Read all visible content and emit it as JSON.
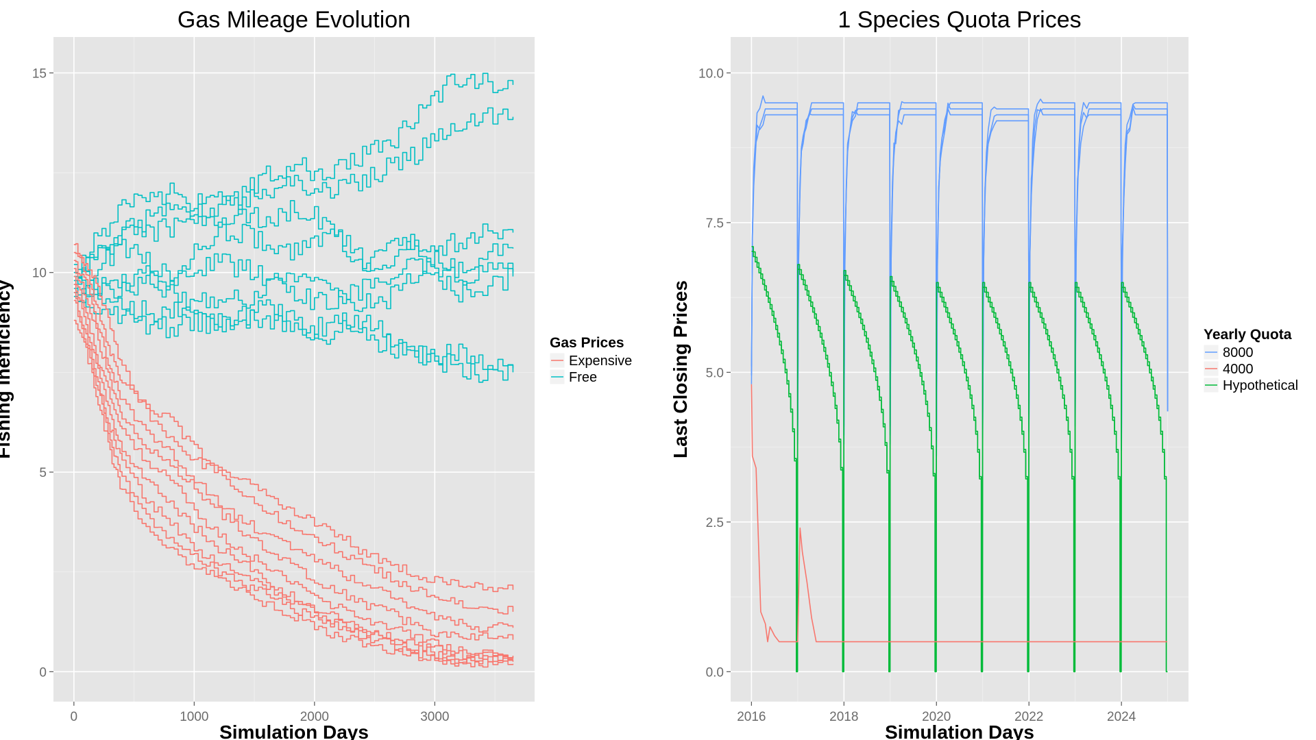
{
  "chart_data": [
    {
      "type": "line",
      "title": "Gas Mileage Evolution",
      "xlabel": "Simulation Days",
      "ylabel": "Fishing Inefficiency",
      "xlim": [
        -170,
        3830
      ],
      "ylim": [
        -0.75,
        15.9
      ],
      "xticks": [
        0,
        1000,
        2000,
        3000
      ],
      "yticks": [
        0,
        5,
        10,
        15
      ],
      "grid": true,
      "legend": {
        "title": "Gas Prices",
        "placement": "right",
        "entries": [
          {
            "label": "Expensive",
            "color": "#F8766D"
          },
          {
            "label": "Free",
            "color": "#00BFC4"
          }
        ]
      },
      "series": [
        {
          "legend_ref": "Free",
          "color": "#00BFC4",
          "x": [
            0,
            200,
            400,
            600,
            800,
            1000,
            1200,
            1400,
            1600,
            1800,
            2000,
            2200,
            2400,
            2600,
            2800,
            3000,
            3200,
            3400,
            3650
          ],
          "y": [
            10.2,
            10.5,
            11.0,
            11.3,
            11.6,
            11.4,
            11.7,
            12.0,
            12.4,
            12.7,
            12.5,
            12.6,
            12.9,
            13.2,
            13.7,
            14.4,
            14.9,
            14.8,
            14.7
          ]
        },
        {
          "legend_ref": "Free",
          "color": "#00BFC4",
          "x": [
            0,
            200,
            400,
            600,
            800,
            1000,
            1200,
            1400,
            1600,
            1800,
            2000,
            2200,
            2400,
            2600,
            2800,
            3000,
            3200,
            3400,
            3650
          ],
          "y": [
            10.0,
            10.9,
            11.7,
            11.9,
            12.0,
            11.7,
            11.9,
            11.7,
            12.0,
            12.3,
            12.0,
            12.1,
            12.3,
            12.6,
            12.9,
            13.3,
            13.8,
            13.9,
            13.9
          ]
        },
        {
          "legend_ref": "Free",
          "color": "#00BFC4",
          "x": [
            0,
            200,
            400,
            600,
            800,
            1000,
            1200,
            1400,
            1600,
            1800,
            2000,
            2200,
            2400,
            2600,
            2800,
            3000,
            3200,
            3400,
            3650
          ],
          "y": [
            9.9,
            10.4,
            10.9,
            11.0,
            11.1,
            11.3,
            11.2,
            11.4,
            11.3,
            11.6,
            11.4,
            10.9,
            10.3,
            10.1,
            10.7,
            10.6,
            10.8,
            11.1,
            11.0
          ]
        },
        {
          "legend_ref": "Free",
          "color": "#00BFC4",
          "x": [
            0,
            200,
            400,
            600,
            800,
            1000,
            1200,
            1400,
            1600,
            1800,
            2000,
            2200,
            2400,
            2600,
            2800,
            3000,
            3200,
            3400,
            3650
          ],
          "y": [
            9.8,
            10.2,
            10.7,
            10.3,
            10.0,
            10.5,
            11.0,
            11.0,
            10.7,
            10.5,
            10.9,
            10.8,
            10.2,
            10.6,
            10.8,
            10.3,
            10.1,
            10.4,
            10.6
          ]
        },
        {
          "legend_ref": "Free",
          "color": "#00BFC4",
          "x": [
            0,
            200,
            400,
            600,
            800,
            1000,
            1200,
            1400,
            1600,
            1800,
            2000,
            2200,
            2400,
            2600,
            2800,
            3000,
            3200,
            3400,
            3650
          ],
          "y": [
            9.7,
            9.6,
            9.8,
            9.9,
            9.7,
            10.1,
            10.3,
            10.1,
            9.8,
            9.6,
            9.2,
            9.4,
            9.6,
            9.9,
            10.1,
            10.2,
            9.9,
            10.0,
            10.0
          ]
        },
        {
          "legend_ref": "Free",
          "color": "#00BFC4",
          "x": [
            0,
            200,
            400,
            600,
            800,
            1000,
            1200,
            1400,
            1600,
            1800,
            2000,
            2200,
            2400,
            2600,
            2800,
            3000,
            3200,
            3400,
            3650
          ],
          "y": [
            9.6,
            9.7,
            9.5,
            9.8,
            9.5,
            9.2,
            9.4,
            9.3,
            9.6,
            9.9,
            9.7,
            9.4,
            9.2,
            9.3,
            9.8,
            9.9,
            9.5,
            9.7,
            9.9
          ]
        },
        {
          "legend_ref": "Free",
          "color": "#00BFC4",
          "x": [
            0,
            200,
            400,
            600,
            800,
            1000,
            1200,
            1400,
            1600,
            1800,
            2000,
            2200,
            2400,
            2600,
            2800,
            3000,
            3200,
            3400,
            3650
          ],
          "y": [
            9.5,
            9.4,
            9.2,
            9.0,
            9.1,
            8.9,
            8.7,
            8.9,
            9.1,
            8.8,
            8.6,
            8.8,
            8.4,
            8.2,
            8.0,
            7.9,
            8.1,
            7.7,
            7.6
          ]
        },
        {
          "legend_ref": "Free",
          "color": "#00BFC4",
          "x": [
            0,
            200,
            400,
            600,
            800,
            1000,
            1200,
            1400,
            1600,
            1800,
            2000,
            2200,
            2400,
            2600,
            2800,
            3000,
            3200,
            3400,
            3650
          ],
          "y": [
            9.4,
            9.2,
            8.9,
            8.7,
            8.6,
            8.8,
            8.7,
            8.8,
            8.9,
            8.5,
            8.3,
            8.6,
            8.8,
            8.4,
            8.1,
            7.8,
            7.6,
            7.4,
            7.5
          ]
        },
        {
          "legend_ref": "Expensive",
          "color": "#F8766D",
          "x": [
            0,
            100,
            200,
            300,
            400,
            600,
            800,
            1000,
            1200,
            1400,
            1600,
            1800,
            2000,
            2200,
            2400,
            2600,
            2800,
            3000,
            3200,
            3400,
            3650
          ],
          "y": [
            10.7,
            10.2,
            9.6,
            8.7,
            7.6,
            6.5,
            5.8,
            5.3,
            5.0,
            4.8,
            4.4,
            4.0,
            3.7,
            3.4,
            3.0,
            2.7,
            2.5,
            2.3,
            2.2,
            2.1,
            2.05
          ]
        },
        {
          "legend_ref": "Expensive",
          "color": "#F8766D",
          "x": [
            0,
            100,
            200,
            300,
            400,
            600,
            800,
            1000,
            1200,
            1400,
            1600,
            1800,
            2000,
            2200,
            2400,
            2600,
            2800,
            3000,
            3200,
            3400,
            3650
          ],
          "y": [
            10.5,
            10.0,
            9.0,
            8.0,
            7.3,
            6.7,
            6.3,
            5.6,
            5.0,
            4.4,
            4.0,
            3.7,
            3.4,
            3.0,
            2.7,
            2.4,
            2.1,
            1.9,
            1.7,
            1.6,
            1.5
          ]
        },
        {
          "legend_ref": "Expensive",
          "color": "#F8766D",
          "x": [
            0,
            100,
            200,
            300,
            400,
            600,
            800,
            1000,
            1200,
            1400,
            1600,
            1800,
            2000,
            2200,
            2400,
            2600,
            2800,
            3000,
            3200,
            3400,
            3650
          ],
          "y": [
            10.3,
            9.7,
            8.6,
            7.6,
            6.8,
            6.0,
            5.5,
            4.8,
            4.2,
            3.8,
            3.4,
            3.1,
            2.8,
            2.5,
            2.2,
            1.9,
            1.6,
            1.4,
            1.2,
            1.1,
            1.1
          ]
        },
        {
          "legend_ref": "Expensive",
          "color": "#F8766D",
          "x": [
            0,
            100,
            200,
            300,
            400,
            600,
            800,
            1000,
            1200,
            1400,
            1600,
            1800,
            2000,
            2200,
            2400,
            2600,
            2800,
            3000,
            3200,
            3400,
            3650
          ],
          "y": [
            10.1,
            9.4,
            8.3,
            7.2,
            6.3,
            5.6,
            5.2,
            4.6,
            4.0,
            3.5,
            3.1,
            2.7,
            2.3,
            2.0,
            1.7,
            1.5,
            1.2,
            1.0,
            0.9,
            0.85,
            0.8
          ]
        },
        {
          "legend_ref": "Expensive",
          "color": "#F8766D",
          "x": [
            0,
            100,
            200,
            300,
            400,
            600,
            800,
            1000,
            1200,
            1400,
            1600,
            1800,
            2000,
            2200,
            2400,
            2600,
            2800,
            3000,
            3200,
            3400,
            3650
          ],
          "y": [
            9.9,
            9.0,
            7.8,
            6.9,
            6.0,
            5.2,
            4.8,
            4.0,
            3.4,
            3.0,
            2.6,
            2.2,
            1.9,
            1.6,
            1.3,
            1.1,
            0.9,
            0.7,
            0.55,
            0.45,
            0.4
          ]
        },
        {
          "legend_ref": "Expensive",
          "color": "#F8766D",
          "x": [
            0,
            100,
            200,
            300,
            400,
            600,
            800,
            1000,
            1200,
            1400,
            1600,
            1800,
            2000,
            2200,
            2400,
            2600,
            2800,
            3000,
            3200,
            3400,
            3650
          ],
          "y": [
            9.7,
            8.7,
            7.5,
            6.5,
            5.6,
            4.8,
            4.2,
            3.6,
            3.1,
            2.7,
            2.3,
            1.9,
            1.6,
            1.3,
            1.1,
            0.9,
            0.7,
            0.55,
            0.45,
            0.38,
            0.35
          ]
        },
        {
          "legend_ref": "Expensive",
          "color": "#F8766D",
          "x": [
            0,
            100,
            200,
            300,
            400,
            600,
            800,
            1000,
            1200,
            1400,
            1600,
            1800,
            2000,
            2200,
            2400,
            2600,
            2800,
            3000,
            3200,
            3400,
            3650
          ],
          "y": [
            9.5,
            8.4,
            7.2,
            6.1,
            5.2,
            4.3,
            3.7,
            3.1,
            2.7,
            2.4,
            2.1,
            1.8,
            1.5,
            1.2,
            1.0,
            0.8,
            0.6,
            0.45,
            0.35,
            0.3,
            0.3
          ]
        },
        {
          "legend_ref": "Expensive",
          "color": "#F8766D",
          "x": [
            0,
            100,
            200,
            300,
            400,
            600,
            800,
            1000,
            1200,
            1400,
            1600,
            1800,
            2000,
            2200,
            2400,
            2600,
            2800,
            3000,
            3200,
            3400,
            3650
          ],
          "y": [
            9.3,
            8.2,
            7.0,
            5.8,
            4.8,
            3.9,
            3.3,
            2.9,
            2.5,
            2.2,
            1.9,
            1.6,
            1.4,
            1.1,
            0.9,
            0.7,
            0.5,
            0.4,
            0.3,
            0.25,
            0.25
          ]
        },
        {
          "legend_ref": "Expensive",
          "color": "#F8766D",
          "x": [
            0,
            100,
            200,
            300,
            400,
            600,
            800,
            1000,
            1200,
            1400,
            1600,
            1800,
            2000,
            2200,
            2400,
            2600,
            2800,
            3000,
            3200,
            3400,
            3650
          ],
          "y": [
            8.8,
            8.0,
            6.8,
            5.5,
            4.5,
            3.6,
            3.0,
            2.7,
            2.3,
            2.0,
            1.7,
            1.4,
            1.1,
            0.9,
            0.7,
            0.5,
            0.4,
            0.3,
            0.22,
            0.2,
            0.2
          ]
        }
      ]
    },
    {
      "type": "line",
      "title": "1 Species Quota Prices",
      "xlabel": "Simulation Days",
      "ylabel": "Last Closing Prices",
      "xlim": [
        2015.55,
        2025.45
      ],
      "ylim": [
        -0.5,
        10.6
      ],
      "xticks": [
        2016,
        2018,
        2020,
        2022,
        2024
      ],
      "yticks": [
        0.0,
        2.5,
        5.0,
        7.5,
        10.0
      ],
      "ytick_labels": [
        "0.0",
        "2.5",
        "5.0",
        "7.5",
        "10.0"
      ],
      "grid": true,
      "legend": {
        "title": "Yearly Quota",
        "placement": "right",
        "entries": [
          {
            "label": "8000",
            "color": "#619CFF"
          },
          {
            "label": "4000",
            "color": "#F8766D"
          },
          {
            "label": "Hypothetical",
            "color": "#00BA38"
          }
        ]
      },
      "yearly_cycles": {
        "years": [
          2016,
          2017,
          2018,
          2019,
          2020,
          2021,
          2022,
          2023,
          2024
        ],
        "blue_start_low": [
          4.8,
          3.8,
          3.8,
          3.8,
          3.6,
          3.9,
          4.0,
          4.1,
          3.7
        ],
        "blue_plateau": [
          9.5,
          9.5,
          9.5,
          9.5,
          9.5,
          9.4,
          9.5,
          9.5,
          9.5
        ],
        "green_start_high": [
          7.1,
          6.8,
          6.7,
          6.6,
          6.5,
          6.5,
          6.5,
          6.5,
          6.5
        ]
      },
      "series": [
        {
          "legend_ref": "4000",
          "color": "#F8766D",
          "x": [
            2016.0,
            2016.02,
            2016.1,
            2016.15,
            2016.2,
            2016.3,
            2016.35,
            2016.4,
            2016.5,
            2016.6,
            2016.75,
            2016.9,
            2017.0,
            2017.05,
            2017.1,
            2017.2,
            2017.3,
            2017.35,
            2017.4,
            2017.5,
            2018,
            2019,
            2020,
            2021,
            2022,
            2023,
            2024,
            2024.99
          ],
          "y": [
            4.8,
            3.6,
            3.4,
            2.2,
            1.0,
            0.8,
            0.5,
            0.75,
            0.6,
            0.5,
            0.5,
            0.5,
            0.5,
            2.4,
            2.0,
            1.5,
            0.9,
            0.7,
            0.5,
            0.5,
            0.5,
            0.5,
            0.5,
            0.5,
            0.5,
            0.5,
            0.5,
            0.5
          ]
        }
      ]
    }
  ]
}
